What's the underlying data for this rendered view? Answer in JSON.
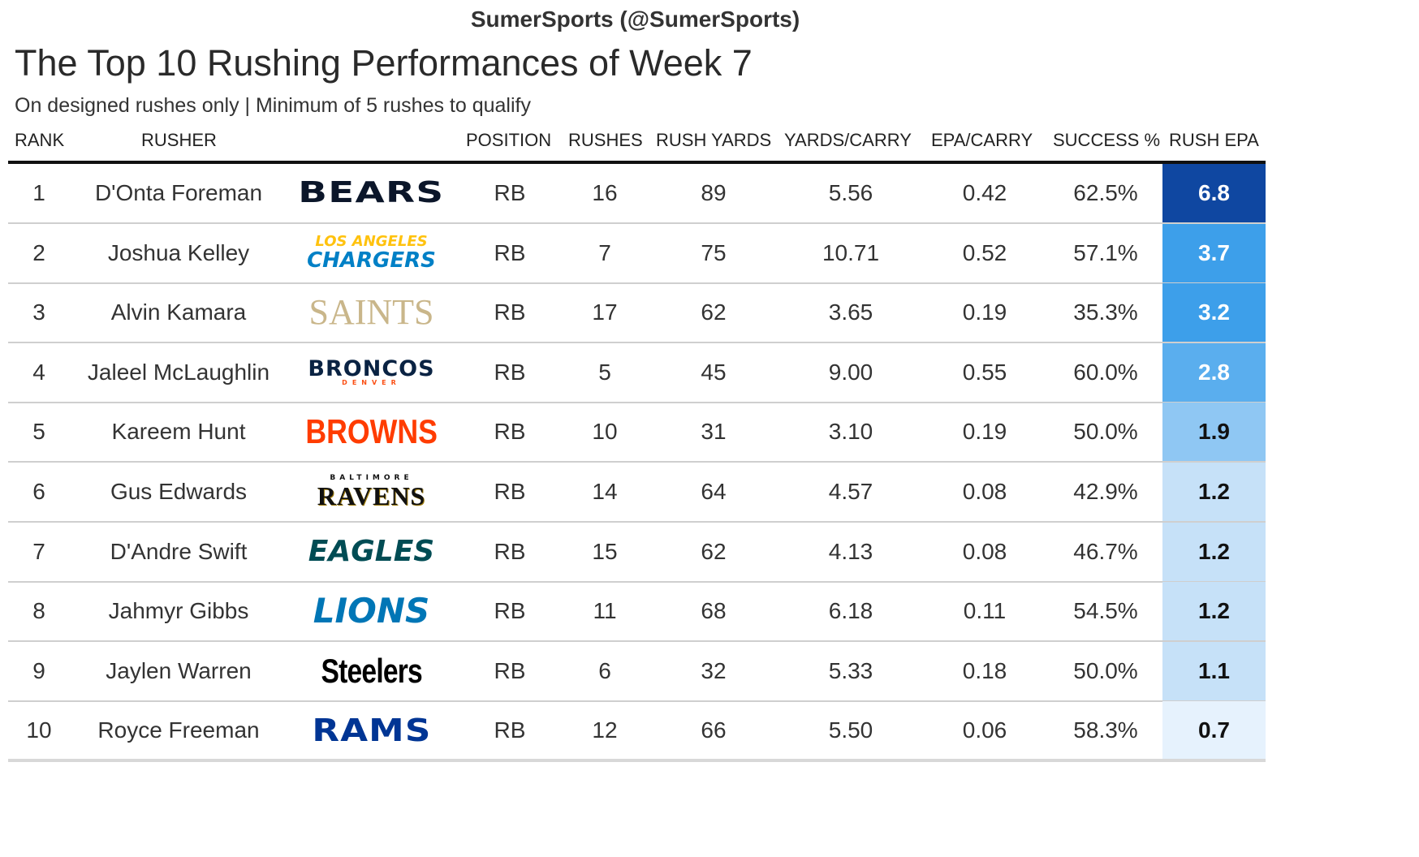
{
  "header": {
    "source": "SumerSports (@SumerSports)",
    "title": "The Top 10 Rushing Performances of Week 7",
    "subtitle": "On designed rushes only | Minimum of 5 rushes to qualify"
  },
  "chart_data": {
    "type": "table",
    "title": "The Top 10 Rushing Performances of Week 7",
    "subtitle": "On designed rushes only | Minimum of 5 rushes to qualify",
    "columns": [
      "RANK",
      "RUSHER",
      "POSITION",
      "RUSHES",
      "RUSH YARDS",
      "YARDS/CARRY",
      "EPA/CARRY",
      "SUCCESS %",
      "RUSH EPA"
    ],
    "rows": [
      {
        "rank": "1",
        "rusher": "D'Onta Foreman",
        "team": "BEARS",
        "team_top": "",
        "team_sub": "",
        "position": "RB",
        "rushes": "16",
        "rush_yards": "89",
        "yards_per_carry": "5.56",
        "epa_per_carry": "0.42",
        "success": "62.5%",
        "rush_epa": "6.8",
        "epa_value": 6.8,
        "team_color": "#0B162A",
        "team_accent": "#0B162A"
      },
      {
        "rank": "2",
        "rusher": "Joshua Kelley",
        "team": "CHARGERS",
        "team_top": "LOS ANGELES",
        "team_sub": "",
        "position": "RB",
        "rushes": "7",
        "rush_yards": "75",
        "yards_per_carry": "10.71",
        "epa_per_carry": "0.52",
        "success": "57.1%",
        "rush_epa": "3.7",
        "epa_value": 3.7,
        "team_color": "#0080C6",
        "team_accent": "#FFC20E"
      },
      {
        "rank": "3",
        "rusher": "Alvin Kamara",
        "team": "SAINTS",
        "team_top": "",
        "team_sub": "",
        "position": "RB",
        "rushes": "17",
        "rush_yards": "62",
        "yards_per_carry": "3.65",
        "epa_per_carry": "0.19",
        "success": "35.3%",
        "rush_epa": "3.2",
        "epa_value": 3.2,
        "team_color": "#C9B68A",
        "team_accent": "#C9B68A"
      },
      {
        "rank": "4",
        "rusher": "Jaleel McLaughlin",
        "team": "BRONCOS",
        "team_top": "",
        "team_sub": "DENVER",
        "position": "RB",
        "rushes": "5",
        "rush_yards": "45",
        "yards_per_carry": "9.00",
        "epa_per_carry": "0.55",
        "success": "60.0%",
        "rush_epa": "2.8",
        "epa_value": 2.8,
        "team_color": "#0A2343",
        "team_accent": "#FB4F14"
      },
      {
        "rank": "5",
        "rusher": "Kareem Hunt",
        "team": "BROWNS",
        "team_top": "",
        "team_sub": "",
        "position": "RB",
        "rushes": "10",
        "rush_yards": "31",
        "yards_per_carry": "3.10",
        "epa_per_carry": "0.19",
        "success": "50.0%",
        "rush_epa": "1.9",
        "epa_value": 1.9,
        "team_color": "#FF3C00",
        "team_accent": "#FF3C00"
      },
      {
        "rank": "6",
        "rusher": "Gus Edwards",
        "team": "RAVENS",
        "team_top": "BALTIMORE",
        "team_sub": "",
        "position": "RB",
        "rushes": "14",
        "rush_yards": "64",
        "yards_per_carry": "4.57",
        "epa_per_carry": "0.08",
        "success": "42.9%",
        "rush_epa": "1.2",
        "epa_value": 1.2,
        "team_color": "#111111",
        "team_accent": "#9E7C0C"
      },
      {
        "rank": "7",
        "rusher": "D'Andre Swift",
        "team": "EAGLES",
        "team_top": "",
        "team_sub": "",
        "position": "RB",
        "rushes": "15",
        "rush_yards": "62",
        "yards_per_carry": "4.13",
        "epa_per_carry": "0.08",
        "success": "46.7%",
        "rush_epa": "1.2",
        "epa_value": 1.2,
        "team_color": "#004C54",
        "team_accent": "#004C54"
      },
      {
        "rank": "8",
        "rusher": "Jahmyr Gibbs",
        "team": "LIONS",
        "team_top": "",
        "team_sub": "",
        "position": "RB",
        "rushes": "11",
        "rush_yards": "68",
        "yards_per_carry": "6.18",
        "epa_per_carry": "0.11",
        "success": "54.5%",
        "rush_epa": "1.2",
        "epa_value": 1.2,
        "team_color": "#0076B6",
        "team_accent": "#0076B6"
      },
      {
        "rank": "9",
        "rusher": "Jaylen Warren",
        "team": "Steelers",
        "team_top": "",
        "team_sub": "",
        "position": "RB",
        "rushes": "6",
        "rush_yards": "32",
        "yards_per_carry": "5.33",
        "epa_per_carry": "0.18",
        "success": "50.0%",
        "rush_epa": "1.1",
        "epa_value": 1.1,
        "team_color": "#000000",
        "team_accent": "#000000"
      },
      {
        "rank": "10",
        "rusher": "Royce Freeman",
        "team": "RAMS",
        "team_top": "",
        "team_sub": "",
        "position": "RB",
        "rushes": "12",
        "rush_yards": "66",
        "yards_per_carry": "5.50",
        "epa_per_carry": "0.06",
        "success": "58.3%",
        "rush_epa": "0.7",
        "epa_value": 0.7,
        "team_color": "#003594",
        "team_accent": "#003594"
      }
    ],
    "epa_range": [
      0.7,
      6.8
    ],
    "color_scale": [
      "#E6F2FD",
      "#C6E1F8",
      "#8FC7F3",
      "#3D9FEA",
      "#0F47A1"
    ]
  }
}
